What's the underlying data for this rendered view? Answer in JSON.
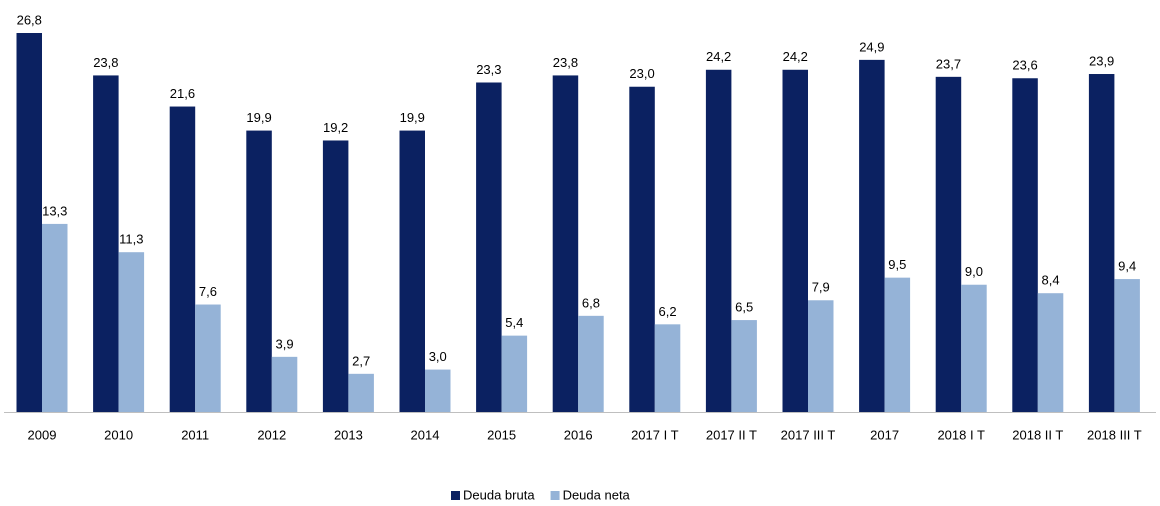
{
  "chart_data": {
    "type": "bar",
    "categories": [
      "2009",
      "2010",
      "2011",
      "2012",
      "2013",
      "2014",
      "2015",
      "2016",
      "2017 I T",
      "2017 II T",
      "2017 III T",
      "2017",
      "2018 I T",
      "2018 II T",
      "2018 III T"
    ],
    "series": [
      {
        "name": "Deuda bruta",
        "color": "#0b2161",
        "values": [
          26.8,
          23.8,
          21.6,
          19.9,
          19.2,
          19.9,
          23.3,
          23.8,
          23.0,
          24.2,
          24.2,
          24.9,
          23.7,
          23.6,
          23.9
        ],
        "value_labels": [
          "26,8",
          "23,8",
          "21,6",
          "19,9",
          "19,2",
          "19,9",
          "23,3",
          "23,8",
          "23,0",
          "24,2",
          "24,2",
          "24,9",
          "23,7",
          "23,6",
          "23,9"
        ]
      },
      {
        "name": "Deuda neta",
        "color": "#95b3d7",
        "values": [
          13.3,
          11.3,
          7.6,
          3.9,
          2.7,
          3.0,
          5.4,
          6.8,
          6.2,
          6.5,
          7.9,
          9.5,
          9.0,
          8.4,
          9.4
        ],
        "value_labels": [
          "13,3",
          "11,3",
          "7,6",
          "3,9",
          "2,7",
          "3,0",
          "5,4",
          "6,8",
          "6,2",
          "6,5",
          "7,9",
          "9,5",
          "9,0",
          "8,4",
          "9,4"
        ]
      }
    ],
    "legend": "bottom"
  }
}
